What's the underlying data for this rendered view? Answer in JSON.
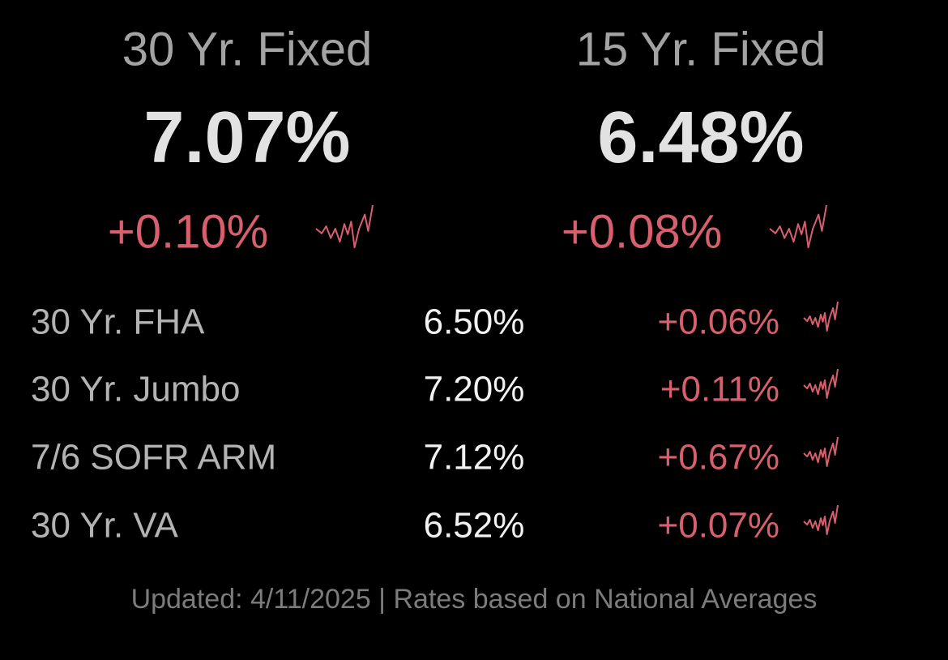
{
  "featured": [
    {
      "name": "30 Yr. Fixed",
      "rate": "7.07%",
      "change": "+0.10%"
    },
    {
      "name": "15 Yr. Fixed",
      "rate": "6.48%",
      "change": "+0.08%"
    }
  ],
  "table": {
    "rows": [
      {
        "name": "30 Yr. FHA",
        "rate": "6.50%",
        "change": "+0.06%"
      },
      {
        "name": "30 Yr. Jumbo",
        "rate": "7.20%",
        "change": "+0.11%"
      },
      {
        "name": "7/6 SOFR ARM",
        "rate": "7.12%",
        "change": "+0.67%"
      },
      {
        "name": "30 Yr. VA",
        "rate": "6.52%",
        "change": "+0.07%"
      }
    ]
  },
  "footer": "Updated: 4/11/2025 | Rates based on National Averages"
}
